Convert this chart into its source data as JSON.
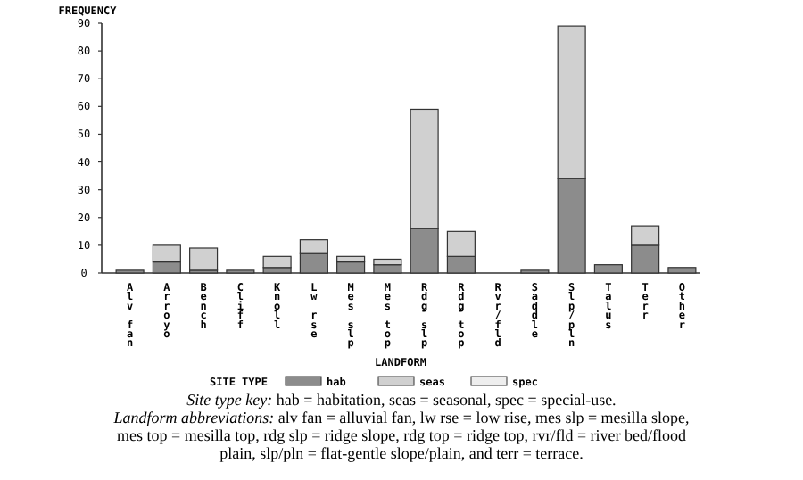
{
  "chart_data": {
    "type": "bar",
    "stacked": true,
    "ylabel": "FREQUENCY",
    "xlabel": "LANDFORM",
    "legend_title": "SITE TYPE",
    "legend": "bottom",
    "categories": [
      "Alv fan",
      "Arroyo",
      "Bench",
      "Cliff",
      "Knoll",
      "Lw rse",
      "Mes slp",
      "Mes top",
      "Rdg slp",
      "Rdg top",
      "Rvr/fld",
      "Saddle",
      "Slp/pln",
      "Talus",
      "Terr",
      "Other"
    ],
    "series": [
      {
        "name": "hab",
        "color": "#8c8c8c",
        "values": [
          1,
          4,
          1,
          1,
          2,
          7,
          4,
          3,
          16,
          6,
          0,
          1,
          34,
          3,
          10,
          2
        ]
      },
      {
        "name": "seas",
        "color": "#d0d0d0",
        "values": [
          0,
          6,
          8,
          0,
          4,
          5,
          2,
          2,
          43,
          9,
          0,
          0,
          55,
          0,
          7,
          0
        ]
      },
      {
        "name": "spec",
        "color": "#eeeeee",
        "values": [
          0,
          0,
          0,
          0,
          0,
          0,
          0,
          0,
          0,
          0,
          0,
          0,
          0,
          0,
          0,
          0
        ]
      }
    ],
    "ylim": [
      0,
      90
    ],
    "yticks": [
      0,
      10,
      20,
      30,
      40,
      50,
      60,
      70,
      80,
      90
    ],
    "annotations": [
      "Site type key:  hab = habitation, seas = seasonal, spec = special-use.",
      "Landform abbreviations:  alv fan = alluvial fan, lw rse = low rise, mes slp = mesilla slope, mes top = mesilla top, rdg slp = ridge slope, rdg top = ridge top, rvr/fld = river bed/flood plain, slp/pln = flat-gentle slope/plain, and terr = terrace."
    ]
  }
}
